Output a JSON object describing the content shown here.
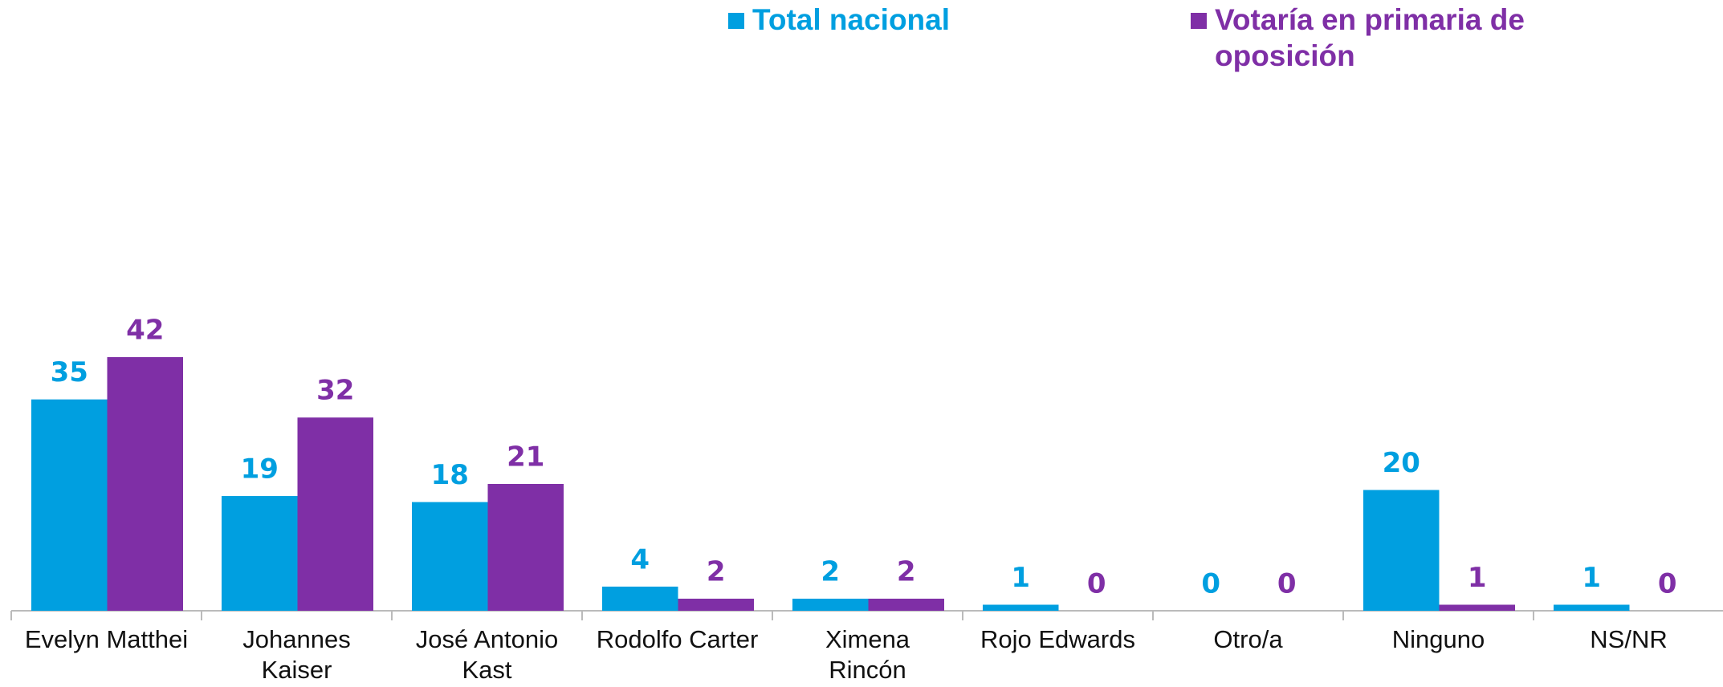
{
  "chart_data": {
    "type": "bar",
    "categories": [
      "Evelyn Matthei",
      "Johannes Kaiser",
      "José Antonio Kast",
      "Rodolfo Carter",
      "Ximena Rincón",
      "Rojo Edwards",
      "Otro/a",
      "Ninguno",
      "NS/NR"
    ],
    "series": [
      {
        "name": "Total nacional",
        "color": "#009fe0",
        "values": [
          35,
          19,
          18,
          4,
          2,
          1,
          0,
          20,
          1
        ]
      },
      {
        "name": "Votaría en primaria de oposición",
        "color": "#7f2fa6",
        "values": [
          42,
          32,
          21,
          2,
          2,
          0,
          0,
          1,
          0
        ]
      }
    ],
    "legend": "top"
  }
}
